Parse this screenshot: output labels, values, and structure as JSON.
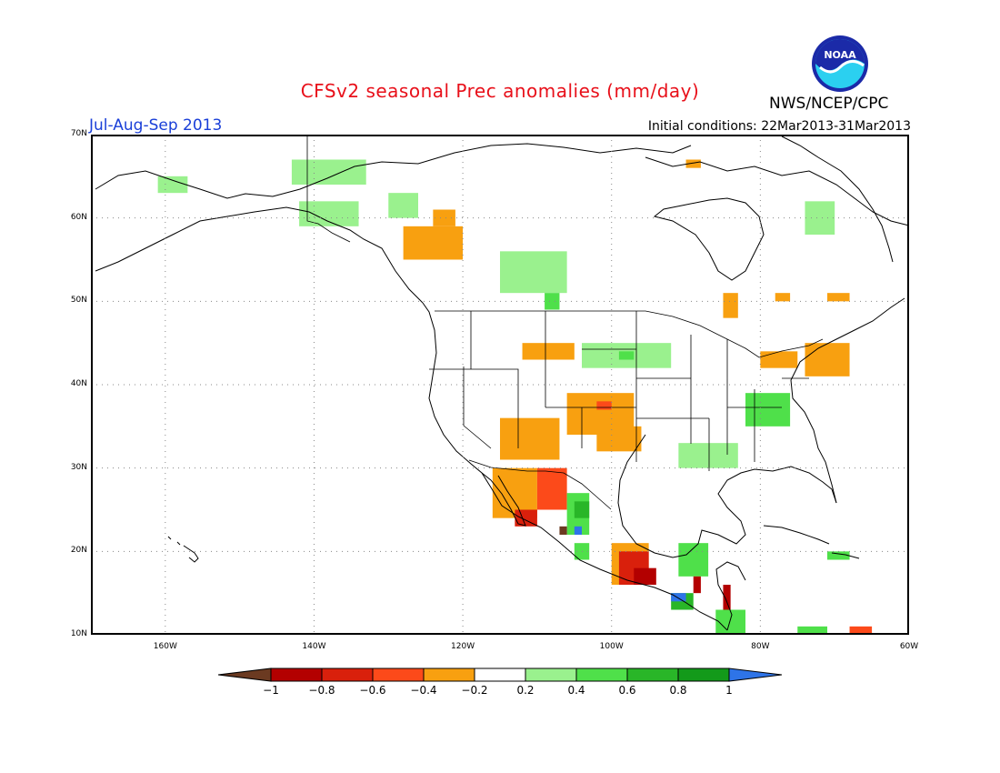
{
  "title": "CFSv2 seasonal Prec anomalies (mm/day)",
  "period": "Jul-Aug-Sep 2013",
  "initial_conditions": "Initial conditions: 22Mar2013-31Mar2013",
  "agency": "NWS/NCEP/CPC",
  "logo_text": "NOAA",
  "colors": {
    "title": "#e8101a",
    "period": "#1a3fd8",
    "gridline": "#888888"
  },
  "map": {
    "lon_range": [
      -170,
      -60
    ],
    "lat_range": [
      10,
      70
    ],
    "lat_ticks": [
      {
        "value": 70,
        "label": "70N"
      },
      {
        "value": 60,
        "label": "60N"
      },
      {
        "value": 50,
        "label": "50N"
      },
      {
        "value": 40,
        "label": "40N"
      },
      {
        "value": 30,
        "label": "30N"
      },
      {
        "value": 20,
        "label": "20N"
      },
      {
        "value": 10,
        "label": "10N"
      }
    ],
    "lon_ticks": [
      {
        "value": -160,
        "label": "160W"
      },
      {
        "value": -140,
        "label": "140W"
      },
      {
        "value": -120,
        "label": "120W"
      },
      {
        "value": -100,
        "label": "100W"
      },
      {
        "value": -80,
        "label": "80W"
      },
      {
        "value": -60,
        "label": "60W"
      }
    ],
    "grid": true
  },
  "legend": {
    "levels": [
      "-1",
      "-0.8",
      "-0.6",
      "-0.4",
      "-0.2",
      "0.2",
      "0.4",
      "0.6",
      "0.8",
      "1"
    ],
    "bins": [
      {
        "color": "#6b3a21",
        "range": "< -1"
      },
      {
        "color": "#b30000",
        "range": "-1 to -0.8"
      },
      {
        "color": "#d9200c",
        "range": "-0.8 to -0.6"
      },
      {
        "color": "#fc4a1a",
        "range": "-0.6 to -0.4"
      },
      {
        "color": "#f8a010",
        "range": "-0.4 to -0.2"
      },
      {
        "color": "#ffffff",
        "range": "-0.2 to 0.2"
      },
      {
        "color": "#9af18e",
        "range": "0.2 to 0.4"
      },
      {
        "color": "#4fe04a",
        "range": "0.4 to 0.6"
      },
      {
        "color": "#29b628",
        "range": "0.6 to 0.8"
      },
      {
        "color": "#139a1a",
        "range": "0.8 to 1"
      },
      {
        "color": "#2e74e8",
        "range": "> 1"
      }
    ]
  },
  "anomaly_patches": [
    {
      "name": "alaska-north-wet",
      "cat": "0.2 to 0.4",
      "lon": [
        -143,
        -133
      ],
      "lat": [
        64,
        67
      ]
    },
    {
      "name": "alaska-west-wet",
      "cat": "0.2 to 0.4",
      "lon": [
        -161,
        -157
      ],
      "lat": [
        63,
        65
      ]
    },
    {
      "name": "alaska-south-wet",
      "cat": "0.2 to 0.4",
      "lon": [
        -142,
        -134
      ],
      "lat": [
        59,
        62
      ]
    },
    {
      "name": "yukon-wet",
      "cat": "0.2 to 0.4",
      "lon": [
        -130,
        -126
      ],
      "lat": [
        60,
        63
      ]
    },
    {
      "name": "nw-canada-dry",
      "cat": "-0.4 to -0.2",
      "lon": [
        -128,
        -120
      ],
      "lat": [
        55,
        59
      ]
    },
    {
      "name": "nw-canada-dry-core",
      "cat": "-0.4 to -0.2",
      "lon": [
        -124,
        -121
      ],
      "lat": [
        59,
        61
      ]
    },
    {
      "name": "central-canada-wet",
      "cat": "0.2 to 0.4",
      "lon": [
        -115,
        -106
      ],
      "lat": [
        51,
        56
      ]
    },
    {
      "name": "central-canada-wet-core",
      "cat": "0.4 to 0.6",
      "lon": [
        -109,
        -107
      ],
      "lat": [
        49,
        51
      ]
    },
    {
      "name": "labrador-wet",
      "cat": "0.2 to 0.4",
      "lon": [
        -74,
        -70
      ],
      "lat": [
        58,
        62
      ]
    },
    {
      "name": "hudson-north-dry",
      "cat": "-0.4 to -0.2",
      "lon": [
        -90,
        -88
      ],
      "lat": [
        66,
        67
      ]
    },
    {
      "name": "ontario-dry",
      "cat": "-0.4 to -0.2",
      "lon": [
        -85,
        -83
      ],
      "lat": [
        48,
        51
      ]
    },
    {
      "name": "quebec-dry",
      "cat": "-0.4 to -0.2",
      "lon": [
        -78,
        -76
      ],
      "lat": [
        50,
        51
      ]
    },
    {
      "name": "quebec-east-dry",
      "cat": "-0.4 to -0.2",
      "lon": [
        -71,
        -68
      ],
      "lat": [
        50,
        51
      ]
    },
    {
      "name": "new-england-dry",
      "cat": "-0.4 to -0.2",
      "lon": [
        -74,
        -68
      ],
      "lat": [
        41,
        45
      ]
    },
    {
      "name": "great-lakes-dry",
      "cat": "-0.4 to -0.2",
      "lon": [
        -80,
        -75
      ],
      "lat": [
        42,
        44
      ]
    },
    {
      "name": "northern-plains-dry",
      "cat": "-0.4 to -0.2",
      "lon": [
        -112,
        -105
      ],
      "lat": [
        43,
        45
      ]
    },
    {
      "name": "midwest-wet",
      "cat": "0.2 to 0.4",
      "lon": [
        -104,
        -92
      ],
      "lat": [
        42,
        45
      ]
    },
    {
      "name": "midwest-wet-core",
      "cat": "0.4 to 0.6",
      "lon": [
        -99,
        -97
      ],
      "lat": [
        43,
        44
      ]
    },
    {
      "name": "southwest-dry",
      "cat": "-0.4 to -0.2",
      "lon": [
        -115,
        -107
      ],
      "lat": [
        31,
        36
      ]
    },
    {
      "name": "southern-rockies-dry",
      "cat": "-0.4 to -0.2",
      "lon": [
        -106,
        -97
      ],
      "lat": [
        34,
        39
      ]
    },
    {
      "name": "texas-dry",
      "cat": "-0.4 to -0.2",
      "lon": [
        -102,
        -96
      ],
      "lat": [
        32,
        35
      ]
    },
    {
      "name": "colorado-dry-core",
      "cat": "-0.6 to -0.4",
      "lon": [
        -102,
        -100
      ],
      "lat": [
        37,
        38
      ]
    },
    {
      "name": "southeast-wet",
      "cat": "0.2 to 0.4",
      "lon": [
        -91,
        -83
      ],
      "lat": [
        30,
        33
      ]
    },
    {
      "name": "mid-atlantic-wet",
      "cat": "0.4 to 0.6",
      "lon": [
        -82,
        -76
      ],
      "lat": [
        35,
        39
      ]
    },
    {
      "name": "baja-dry",
      "cat": "-0.4 to -0.2",
      "lon": [
        -116,
        -110
      ],
      "lat": [
        24,
        30
      ]
    },
    {
      "name": "sonora-dry",
      "cat": "-0.6 to -0.4",
      "lon": [
        -110,
        -106
      ],
      "lat": [
        25,
        30
      ]
    },
    {
      "name": "baja-tip-dry",
      "cat": "-0.8 to -0.6",
      "lon": [
        -113,
        -110
      ],
      "lat": [
        23,
        25
      ]
    },
    {
      "name": "sierra-madre-wet",
      "cat": "0.4 to 0.6",
      "lon": [
        -106,
        -103
      ],
      "lat": [
        22,
        27
      ]
    },
    {
      "name": "sierra-madre-wet-core",
      "cat": "0.6 to 0.8",
      "lon": [
        -105,
        -103
      ],
      "lat": [
        24,
        26
      ]
    },
    {
      "name": "sinaloa-extreme-dry",
      "cat": "< -1",
      "lon": [
        -107,
        -106
      ],
      "lat": [
        22,
        23
      ]
    },
    {
      "name": "sinaloa-extreme-wet",
      "cat": "> 1",
      "lon": [
        -105,
        -104
      ],
      "lat": [
        22,
        23
      ]
    },
    {
      "name": "jalisco-wet",
      "cat": "0.4 to 0.6",
      "lon": [
        -105,
        -103
      ],
      "lat": [
        19,
        21
      ]
    },
    {
      "name": "veracruz-dry",
      "cat": "-0.4 to -0.2",
      "lon": [
        -100,
        -95
      ],
      "lat": [
        16,
        21
      ]
    },
    {
      "name": "veracruz-dry-core",
      "cat": "-0.8 to -0.6",
      "lon": [
        -99,
        -95
      ],
      "lat": [
        16,
        20
      ]
    },
    {
      "name": "oaxaca-dry-core",
      "cat": "-1 to -0.8",
      "lon": [
        -97,
        -94
      ],
      "lat": [
        16,
        18
      ]
    },
    {
      "name": "yucatan-wet",
      "cat": "0.4 to 0.6",
      "lon": [
        -91,
        -87
      ],
      "lat": [
        17,
        21
      ]
    },
    {
      "name": "guatemala-wet",
      "cat": "0.6 to 0.8",
      "lon": [
        -92,
        -89
      ],
      "lat": [
        13,
        15
      ]
    },
    {
      "name": "guatemala-extreme-wet",
      "cat": "> 1",
      "lon": [
        -92,
        -90
      ],
      "lat": [
        14,
        15
      ]
    },
    {
      "name": "honduras-dry",
      "cat": "-1 to -0.8",
      "lon": [
        -89,
        -88
      ],
      "lat": [
        15,
        17
      ]
    },
    {
      "name": "nicaragua-dry",
      "cat": "-1 to -0.8",
      "lon": [
        -85,
        -84
      ],
      "lat": [
        12,
        16
      ]
    },
    {
      "name": "panama-wet",
      "cat": "0.4 to 0.6",
      "lon": [
        -86,
        -82
      ],
      "lat": [
        10,
        13
      ]
    },
    {
      "name": "caribbean-wet",
      "cat": "0.4 to 0.6",
      "lon": [
        -71,
        -68
      ],
      "lat": [
        19,
        20
      ]
    },
    {
      "name": "venezuela-wet",
      "cat": "0.4 to 0.6",
      "lon": [
        -75,
        -71
      ],
      "lat": [
        10,
        11
      ]
    },
    {
      "name": "venezuela-dry",
      "cat": "-0.6 to -0.4",
      "lon": [
        -68,
        -65
      ],
      "lat": [
        10,
        11
      ]
    }
  ]
}
